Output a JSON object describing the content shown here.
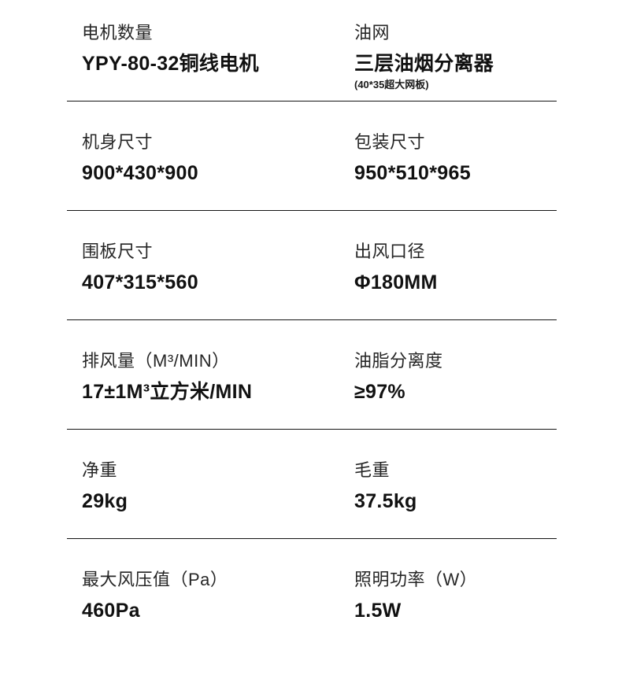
{
  "page": {
    "background": "#ffffff",
    "text_color": "#1a1a1a",
    "divider_color": "#141414",
    "type": "product-spec-sheet"
  },
  "spec_table": {
    "rows": [
      {
        "left": {
          "label": "电机数量",
          "value": "YPY-80-32铜线电机"
        },
        "right": {
          "label": "油网",
          "value": "三层油烟分离器",
          "note": "(40*35超大网板)"
        }
      },
      {
        "left": {
          "label": "机身尺寸",
          "value": "900*430*900"
        },
        "right": {
          "label": "包装尺寸",
          "value": "950*510*965"
        }
      },
      {
        "left": {
          "label": "围板尺寸",
          "value": "407*315*560"
        },
        "right": {
          "label": "出风口径",
          "value": "Φ180MM"
        }
      },
      {
        "left": {
          "label": "排风量（M³/MIN）",
          "value": "17±1M³立方米/MIN"
        },
        "right": {
          "label": "油脂分离度",
          "value": "≥97%"
        }
      },
      {
        "left": {
          "label": "净重",
          "value": "29kg"
        },
        "right": {
          "label": "毛重",
          "value": "37.5kg"
        }
      },
      {
        "left": {
          "label": "最大风压值（Pa）",
          "value": "460Pa"
        },
        "right": {
          "label": "照明功率（W）",
          "value": "1.5W"
        }
      }
    ]
  }
}
